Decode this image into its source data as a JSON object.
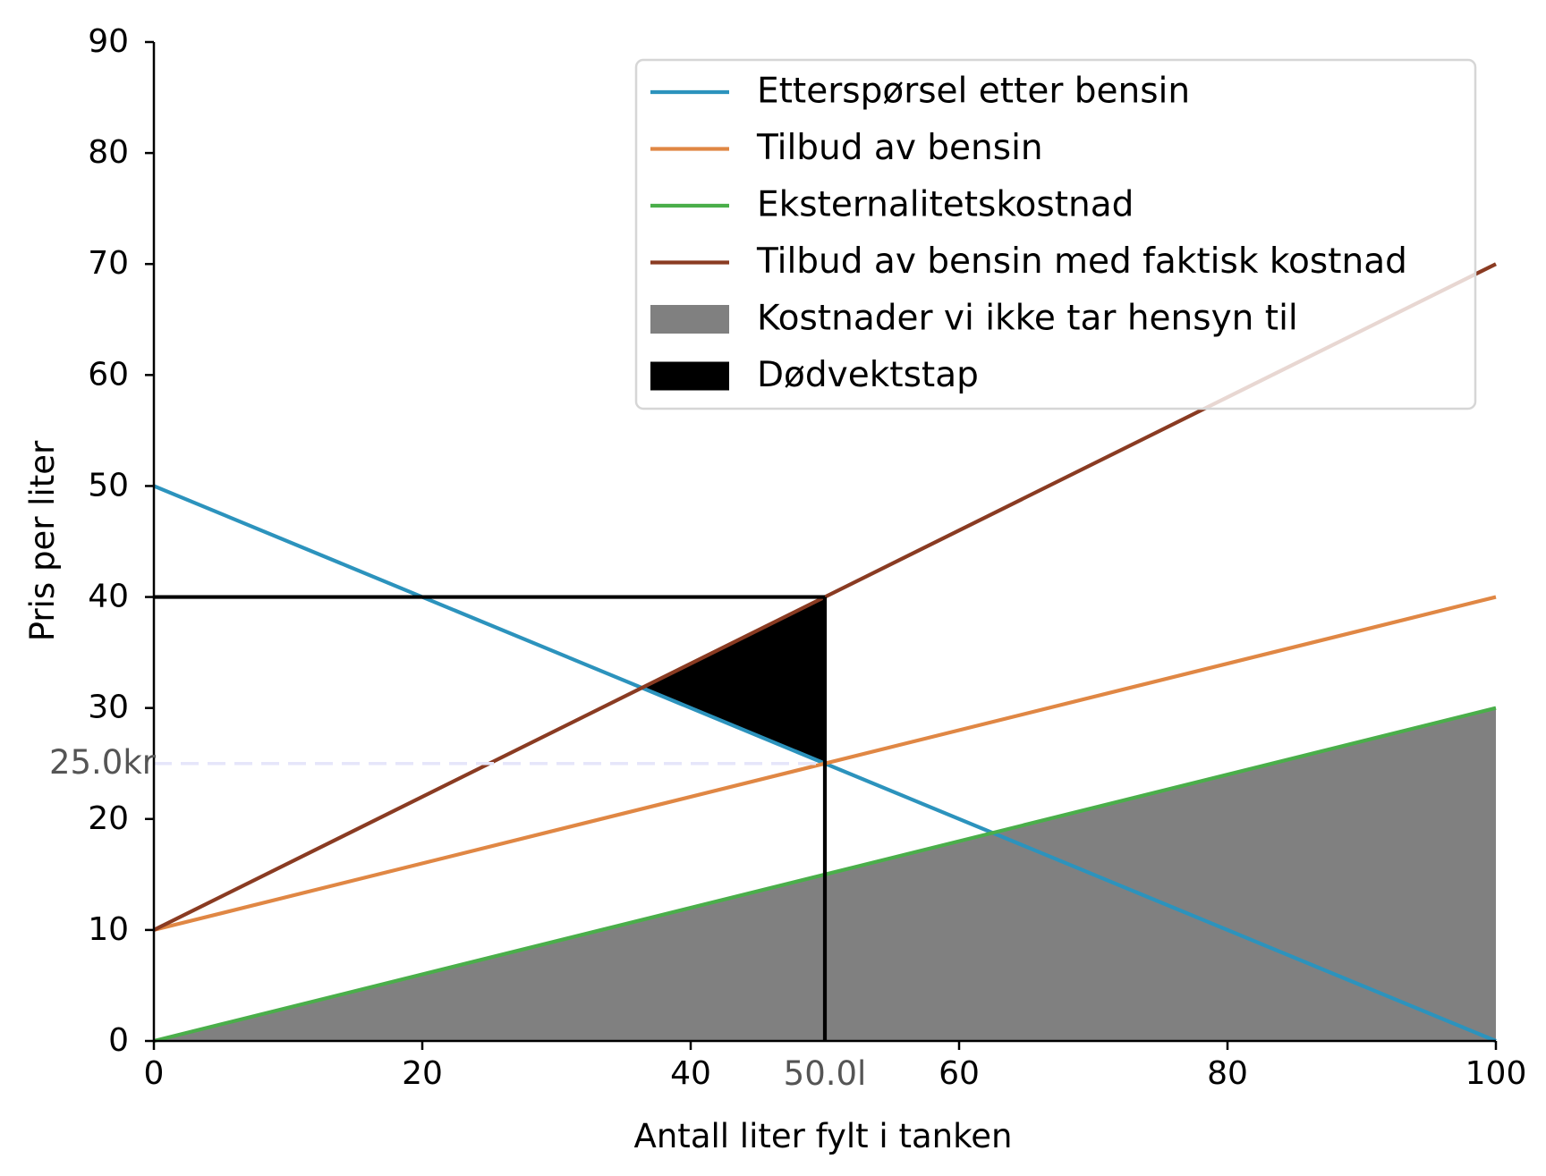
{
  "chart_data": {
    "type": "line",
    "xlabel": "Antall liter fylt i tanken",
    "ylabel": "Pris per liter",
    "xlim": [
      0,
      100
    ],
    "ylim": [
      0,
      90
    ],
    "x_ticks": [
      0,
      20,
      40,
      60,
      80,
      100
    ],
    "x_tick_labels": [
      "0",
      "20",
      "40",
      "60",
      "80",
      "100"
    ],
    "y_ticks": [
      0,
      10,
      20,
      30,
      40,
      50,
      60,
      70,
      80,
      90
    ],
    "y_tick_labels": [
      "0",
      "10",
      "20",
      "30",
      "40",
      "50",
      "60",
      "70",
      "80",
      "90"
    ],
    "grid": false,
    "legend_position": "top-right",
    "series": [
      {
        "name": "Etterspørsel etter bensin",
        "color": "#2c93bd",
        "x": [
          0,
          100
        ],
        "values": [
          50,
          0
        ]
      },
      {
        "name": "Tilbud av bensin",
        "color": "#e08744",
        "x": [
          0,
          100
        ],
        "values": [
          10,
          40
        ]
      },
      {
        "name": "Eksternalitetskostnad",
        "color": "#4aae4a",
        "x": [
          0,
          100
        ],
        "values": [
          0,
          30
        ]
      },
      {
        "name": "Tilbud av bensin med faktisk kostnad",
        "color": "#8a3b22",
        "x": [
          0,
          100
        ],
        "values": [
          10,
          70
        ]
      }
    ],
    "areas": [
      {
        "name": "Kostnader vi ikke tar hensyn til",
        "color": "#808080",
        "points": [
          [
            0,
            0
          ],
          [
            100,
            30
          ],
          [
            100,
            0
          ]
        ]
      },
      {
        "name": "Dødvektstap",
        "color": "#000000",
        "points": [
          [
            36.36,
            31.82
          ],
          [
            50,
            40
          ],
          [
            50,
            25
          ]
        ]
      }
    ],
    "reference_lines": [
      {
        "type": "horizontal",
        "y": 40,
        "x_from": 0,
        "x_to": 50,
        "color": "#000000",
        "style": "solid"
      },
      {
        "type": "vertical",
        "x": 50,
        "y_from": 0,
        "y_to": 40,
        "color": "#000000",
        "style": "solid"
      },
      {
        "type": "horizontal",
        "y": 25,
        "x_from": 0,
        "x_to": 50,
        "color": "#e6e6fa",
        "style": "dashed"
      }
    ],
    "annotations": {
      "equilibrium_price_label": "25.0kr",
      "equilibrium_price": 25,
      "equilibrium_quantity_label": "50.0l",
      "equilibrium_quantity": 50
    }
  }
}
